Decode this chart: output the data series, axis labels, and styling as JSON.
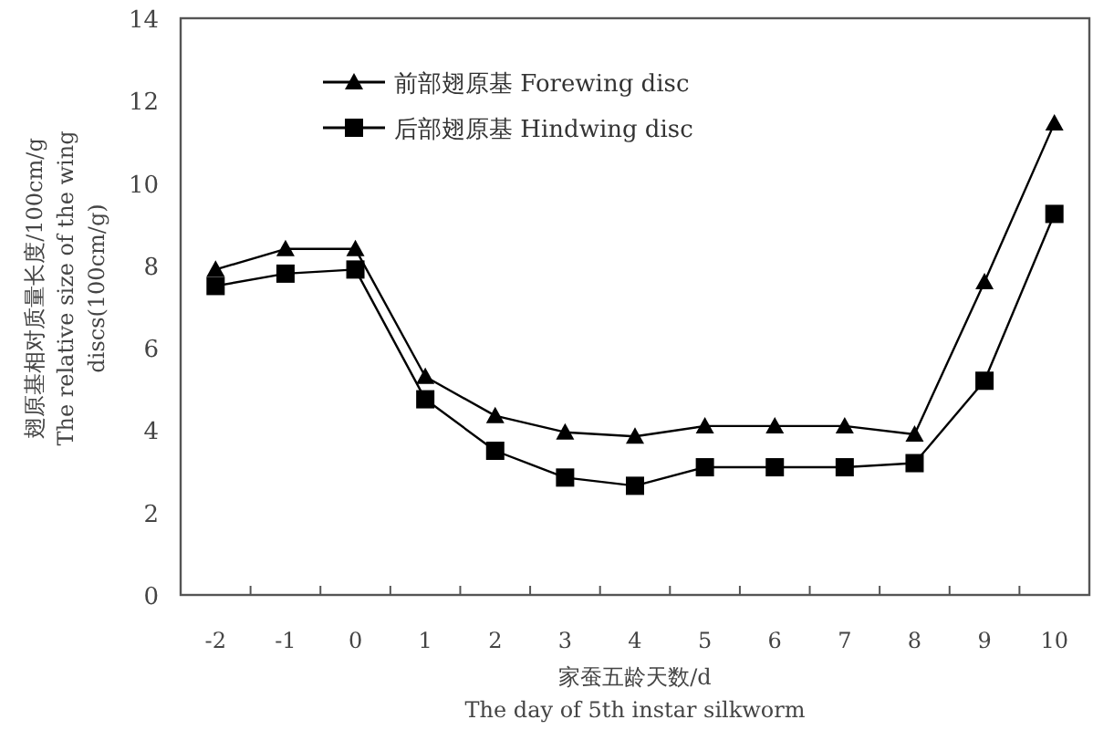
{
  "chart_data": {
    "type": "line",
    "xlabel": "家蚕五龄天数/d\nThe day of 5th instar silkworm",
    "ylabel": "翅原基相对质量长度/100cm/g\nThe relative size of the wing\ndiscs(100cm/g)",
    "categories": [
      "-2",
      "-1",
      "0",
      "1",
      "2",
      "3",
      "4",
      "5",
      "6",
      "7",
      "8",
      "9",
      "10"
    ],
    "series": [
      {
        "name": "前部翅原基 Forewing disc",
        "color": "#000000",
        "marker": "triangle",
        "values": [
          7.9,
          8.4,
          8.4,
          5.3,
          4.35,
          3.95,
          3.85,
          4.1,
          4.1,
          4.1,
          3.9,
          7.6,
          11.45
        ]
      },
      {
        "name": "后部翅原基 Hindwing disc",
        "color": "#000000",
        "marker": "square",
        "values": [
          7.5,
          7.8,
          7.9,
          4.75,
          3.5,
          2.85,
          2.65,
          3.1,
          3.1,
          3.1,
          3.2,
          5.2,
          9.25
        ]
      }
    ],
    "ylim": [
      0,
      14
    ],
    "yticks": [
      0,
      2,
      4,
      6,
      8,
      10,
      12,
      14
    ],
    "grid": false,
    "legend": "top left",
    "line_style": "solid"
  }
}
